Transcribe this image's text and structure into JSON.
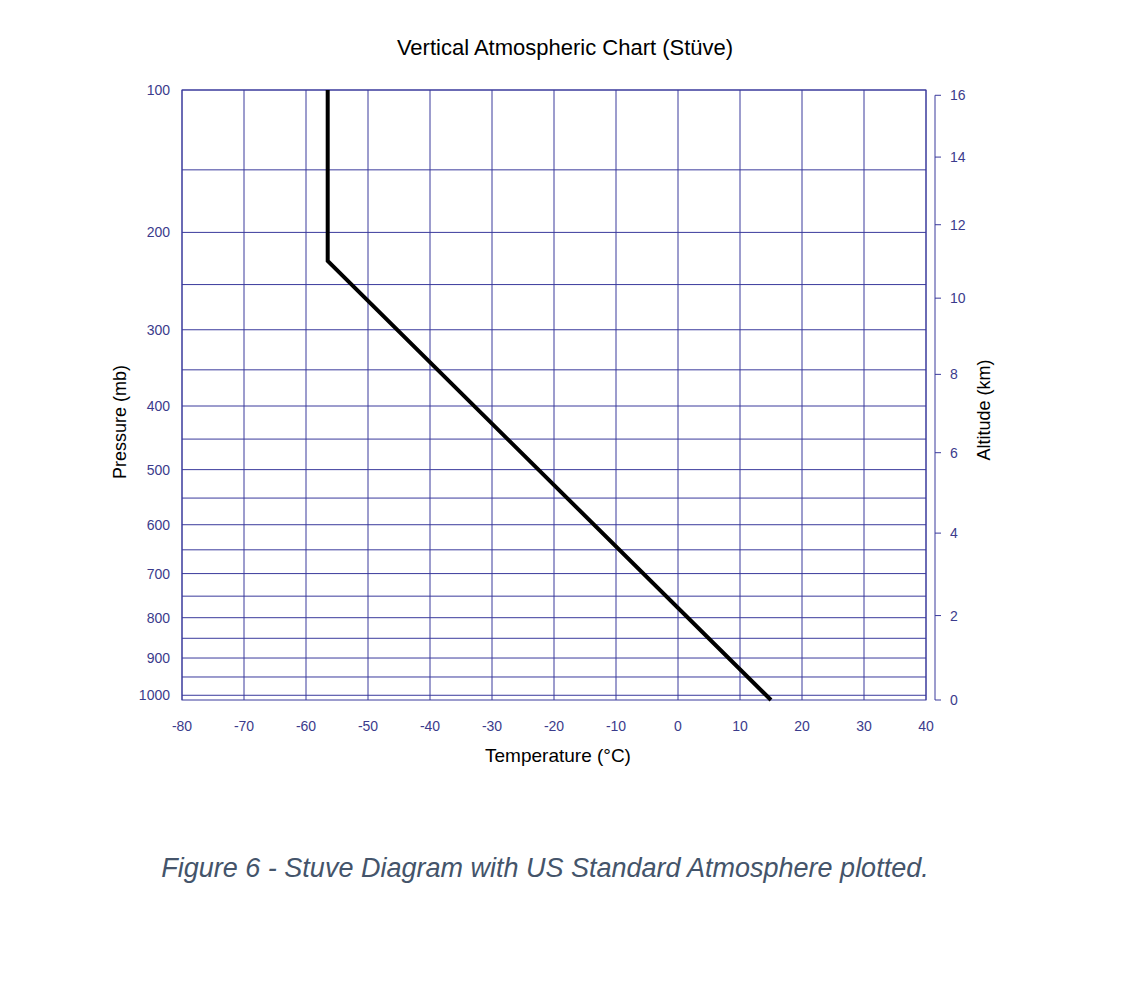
{
  "chart_data": {
    "type": "stuve",
    "title": "Vertical Atmospheric Chart (Stüve)",
    "x_label": "Temperature (°C)",
    "y_label": "Pressure (mb)",
    "y2_label": "Altitude (km)",
    "caption": "Figure 6 - Stuve Diagram with US Standard Atmosphere plotted.",
    "x": [
      15,
      -56.5,
      -56.5
    ],
    "values": [
      1013.25,
      226.32,
      100
    ],
    "color": "#000000",
    "xlim": [
      -80,
      40
    ],
    "xticks": [
      -80,
      -70,
      -60,
      -50,
      -40,
      -30,
      -20,
      -10,
      0,
      10,
      20,
      30,
      40
    ],
    "ylim": [
      1013.25,
      100
    ],
    "yticks": [
      100,
      200,
      300,
      400,
      500,
      600,
      700,
      800,
      900,
      1000
    ],
    "y2lim": [
      0,
      16
    ],
    "y2ticks": [
      0,
      2,
      4,
      6,
      8,
      10,
      12,
      14,
      16
    ],
    "grid": true
  }
}
